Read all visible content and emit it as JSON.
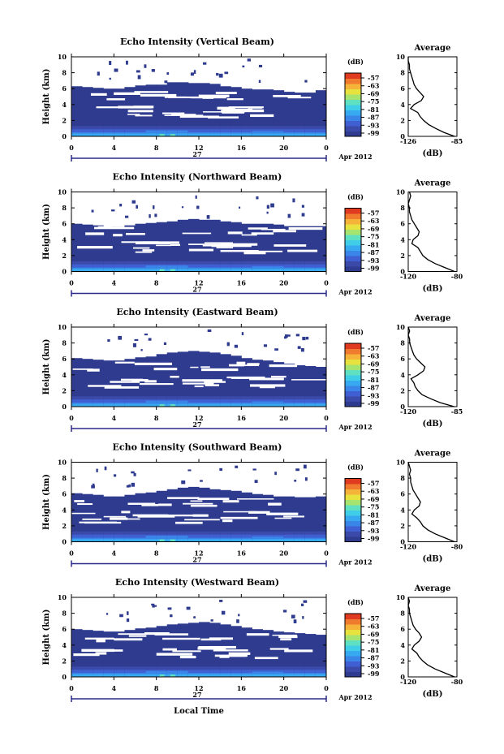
{
  "figure": {
    "date_label": "Apr 2012",
    "day_label": "27",
    "xlabel": "Local Time",
    "colors": {
      "scale": [
        "#2e3b8f",
        "#3b4aa8",
        "#3f5fd2",
        "#3a86e8",
        "#37a9f0",
        "#3fcde8",
        "#5fe0c0",
        "#a7e36f",
        "#e8e23f",
        "#f6b33a",
        "#f07a2e",
        "#e03a20"
      ],
      "background": "#ffffff",
      "ink": "#000000"
    }
  },
  "chart_data": [
    {
      "type": "heatmap",
      "title": "Echo Intensity (Vertical Beam)",
      "ylabel": "Height (km)",
      "xticks": [
        "0",
        "4",
        "8",
        "12",
        "16",
        "20",
        "0"
      ],
      "yticks": [
        "0",
        "2",
        "4",
        "6",
        "8",
        "10"
      ],
      "xlim": [
        0,
        24
      ],
      "ylim": [
        0,
        10
      ],
      "colorbar": {
        "label": "(dB)",
        "ticks": [
          "-57",
          "-63",
          "-69",
          "-75",
          "-81",
          "-87",
          "-93",
          "-99"
        ]
      },
      "cloud_top_km": [
        6.3,
        6.3,
        6.2,
        6.1,
        6.0,
        6.2,
        6.4,
        6.5,
        6.5,
        6.8,
        6.9,
        6.8,
        6.7,
        6.8,
        6.6,
        6.3,
        6.2,
        6.0,
        5.9,
        6.0,
        5.8,
        5.6,
        5.5,
        5.8,
        6.1
      ],
      "profile": {
        "title": "Average",
        "xlabel": "(dB)",
        "xticks": [
          "-126",
          "-85"
        ],
        "xlim": [
          -126,
          -85
        ],
        "yticks": [
          "0",
          "2",
          "4",
          "6",
          "8",
          "10"
        ],
        "ylim": [
          0,
          10
        ],
        "heights": [
          0,
          0.5,
          1,
          1.5,
          2,
          2.5,
          3,
          3.5,
          4,
          4.5,
          5,
          5.5,
          6,
          6.5,
          7,
          7.5,
          8,
          8.5,
          9,
          9.5,
          10
        ],
        "values": [
          -87,
          -96,
          -103,
          -109,
          -113,
          -116,
          -118,
          -124,
          -121,
          -115,
          -113,
          -116,
          -119,
          -121,
          -122,
          -123,
          -124,
          -125,
          -125,
          -126,
          -126
        ]
      }
    },
    {
      "type": "heatmap",
      "title": "Echo Intensity (Northward Beam)",
      "ylabel": "Height (km)",
      "xticks": [
        "0",
        "4",
        "8",
        "12",
        "16",
        "20",
        "0"
      ],
      "yticks": [
        "0",
        "2",
        "4",
        "6",
        "8",
        "10"
      ],
      "xlim": [
        0,
        24
      ],
      "ylim": [
        0,
        10
      ],
      "colorbar": {
        "label": "(dB)",
        "ticks": [
          "-57",
          "-63",
          "-69",
          "-75",
          "-81",
          "-87",
          "-93",
          "-99"
        ]
      },
      "cloud_top_km": [
        6.0,
        6.1,
        5.9,
        5.8,
        5.6,
        5.8,
        6.0,
        6.1,
        6.2,
        6.3,
        6.5,
        6.6,
        6.6,
        6.5,
        6.5,
        6.3,
        6.2,
        6.0,
        6.1,
        6.0,
        5.9,
        5.7,
        5.8,
        5.7,
        5.8
      ],
      "profile": {
        "title": "Average",
        "xlabel": "(dB)",
        "xticks": [
          "-120",
          "-80"
        ],
        "xlim": [
          -120,
          -80
        ],
        "yticks": [
          "0",
          "2",
          "4",
          "6",
          "8",
          "10"
        ],
        "ylim": [
          0,
          10
        ],
        "heights": [
          0,
          0.5,
          1,
          1.5,
          2,
          2.5,
          3,
          3.5,
          4,
          4.5,
          5,
          5.5,
          6,
          6.5,
          7,
          7.5,
          8,
          8.5,
          9,
          9.5,
          10
        ],
        "values": [
          -82,
          -90,
          -98,
          -104,
          -108,
          -110,
          -112,
          -117,
          -116,
          -112,
          -111,
          -113,
          -115,
          -117,
          -118,
          -119,
          -119,
          -120,
          -119,
          -118,
          -119
        ]
      }
    },
    {
      "type": "heatmap",
      "title": "Echo Intensity (Eastward Beam)",
      "ylabel": "Height (km)",
      "xticks": [
        "0",
        "4",
        "8",
        "12",
        "16",
        "20",
        "0"
      ],
      "yticks": [
        "0",
        "2",
        "4",
        "6",
        "8",
        "10"
      ],
      "xlim": [
        0,
        24
      ],
      "ylim": [
        0,
        10
      ],
      "colorbar": {
        "label": "(dB)",
        "ticks": [
          "-57",
          "-63",
          "-69",
          "-75",
          "-81",
          "-87",
          "-93",
          "-99"
        ]
      },
      "cloud_top_km": [
        6.1,
        6.2,
        6.0,
        5.9,
        5.8,
        6.0,
        6.2,
        6.3,
        6.6,
        6.8,
        6.9,
        7.0,
        7.0,
        6.9,
        6.8,
        6.6,
        6.4,
        6.1,
        5.9,
        5.8,
        5.6,
        5.4,
        5.2,
        5.1,
        5.0
      ],
      "profile": {
        "title": "Average",
        "xlabel": "(dB)",
        "xticks": [
          "-120",
          "-85"
        ],
        "xlim": [
          -120,
          -85
        ],
        "yticks": [
          "0",
          "2",
          "4",
          "6",
          "8",
          "10"
        ],
        "ylim": [
          0,
          10
        ],
        "heights": [
          0,
          0.5,
          1,
          1.5,
          2,
          2.5,
          3,
          3.5,
          4,
          4.5,
          5,
          5.5,
          6,
          6.5,
          7,
          7.5,
          8,
          8.5,
          9,
          9.5,
          10
        ],
        "values": [
          -87,
          -97,
          -104,
          -110,
          -113,
          -115,
          -116,
          -118,
          -113,
          -109,
          -108,
          -111,
          -114,
          -116,
          -117,
          -118,
          -119,
          -119,
          -120,
          -119,
          -120
        ]
      }
    },
    {
      "type": "heatmap",
      "title": "Echo Intensity (Southward Beam)",
      "ylabel": "Height (km)",
      "xticks": [
        "0",
        "4",
        "8",
        "12",
        "16",
        "20",
        "0"
      ],
      "yticks": [
        "0",
        "2",
        "4",
        "6",
        "8",
        "10"
      ],
      "xlim": [
        0,
        24
      ],
      "ylim": [
        0,
        10
      ],
      "colorbar": {
        "label": "(dB)",
        "ticks": [
          "-57",
          "-63",
          "-69",
          "-75",
          "-81",
          "-87",
          "-93",
          "-99"
        ]
      },
      "cloud_top_km": [
        6.1,
        6.2,
        6.0,
        5.9,
        5.7,
        5.9,
        6.1,
        6.2,
        6.4,
        6.6,
        6.8,
        6.9,
        6.9,
        6.8,
        6.6,
        6.5,
        6.4,
        6.2,
        6.0,
        5.9,
        5.7,
        5.8,
        5.6,
        5.7,
        5.8
      ],
      "profile": {
        "title": "Average",
        "xlabel": "(dB)",
        "xticks": [
          "-120",
          "-80"
        ],
        "xlim": [
          -120,
          -80
        ],
        "yticks": [
          "0",
          "2",
          "4",
          "6",
          "8",
          "10"
        ],
        "ylim": [
          0,
          10
        ],
        "heights": [
          0,
          0.5,
          1,
          1.5,
          2,
          2.5,
          3,
          3.5,
          4,
          4.5,
          5,
          5.5,
          6,
          6.5,
          7,
          7.5,
          8,
          8.5,
          9,
          9.5,
          10
        ],
        "values": [
          -82,
          -90,
          -98,
          -104,
          -108,
          -110,
          -113,
          -117,
          -115,
          -111,
          -110,
          -112,
          -114,
          -116,
          -117,
          -118,
          -118,
          -119,
          -118,
          -119,
          -120
        ]
      }
    },
    {
      "type": "heatmap",
      "title": "Echo Intensity (Westward Beam)",
      "ylabel": "Height (km)",
      "xticks": [
        "0",
        "4",
        "8",
        "12",
        "16",
        "20",
        "0"
      ],
      "yticks": [
        "0",
        "2",
        "4",
        "6",
        "8",
        "10"
      ],
      "xlim": [
        0,
        24
      ],
      "ylim": [
        0,
        10
      ],
      "colorbar": {
        "label": "(dB)",
        "ticks": [
          "-57",
          "-63",
          "-69",
          "-75",
          "-81",
          "-87",
          "-93",
          "-99"
        ]
      },
      "cloud_top_km": [
        6.0,
        6.1,
        5.9,
        5.8,
        5.7,
        5.9,
        6.1,
        6.2,
        6.4,
        6.6,
        6.7,
        6.8,
        6.9,
        6.9,
        6.8,
        6.6,
        6.4,
        6.2,
        6.0,
        5.9,
        5.7,
        5.6,
        5.5,
        5.4,
        5.3
      ],
      "profile": {
        "title": "Average",
        "xlabel": "(dB)",
        "xticks": [
          "-120",
          "-80"
        ],
        "xlim": [
          -120,
          -80
        ],
        "yticks": [
          "0",
          "2",
          "4",
          "6",
          "8",
          "10"
        ],
        "ylim": [
          0,
          10
        ],
        "heights": [
          0,
          0.5,
          1,
          1.5,
          2,
          2.5,
          3,
          3.5,
          4,
          4.5,
          5,
          5.5,
          6,
          6.5,
          7,
          7.5,
          8,
          8.5,
          9,
          9.5,
          10
        ],
        "values": [
          -82,
          -90,
          -98,
          -104,
          -108,
          -111,
          -113,
          -117,
          -115,
          -111,
          -109,
          -111,
          -114,
          -116,
          -117,
          -118,
          -119,
          -119,
          -120,
          -119,
          -120
        ]
      }
    }
  ]
}
